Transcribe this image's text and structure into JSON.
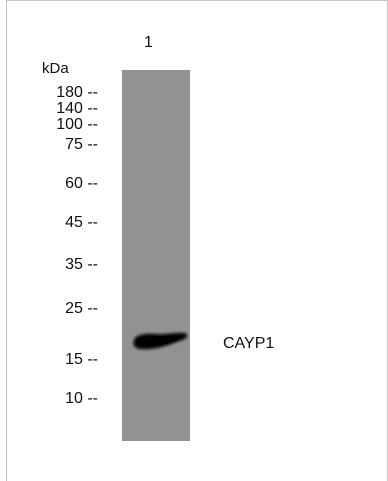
{
  "lane": {
    "number": "1"
  },
  "markers": {
    "unit": "kDa",
    "items": [
      {
        "text": "180 --",
        "kda": 180
      },
      {
        "text": "140 --",
        "kda": 140
      },
      {
        "text": "100 --",
        "kda": 100
      },
      {
        "text": "75 --",
        "kda": 75
      },
      {
        "text": "60 --",
        "kda": 60
      },
      {
        "text": "45 --",
        "kda": 45
      },
      {
        "text": "35 --",
        "kda": 35
      },
      {
        "text": "25 --",
        "kda": 25
      },
      {
        "text": "15 --",
        "kda": 15
      },
      {
        "text": "10 --",
        "kda": 10
      }
    ]
  },
  "band": {
    "label": "CAYP1"
  },
  "colors": {
    "lane": "#929292",
    "band": "#0a0a0a",
    "frame": "#c4c4c4"
  }
}
